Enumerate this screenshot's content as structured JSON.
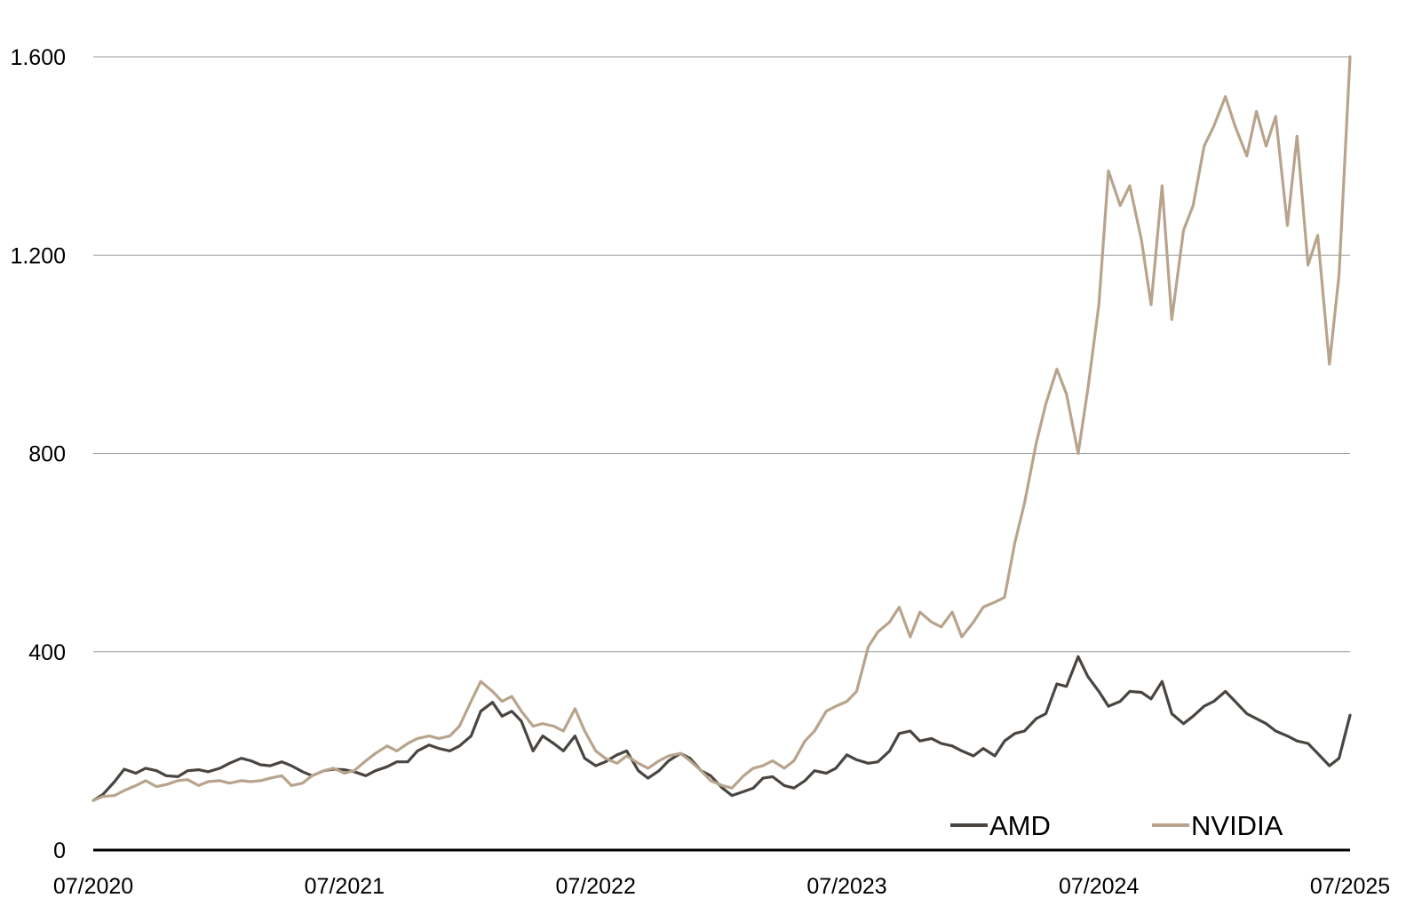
{
  "chart_data": {
    "type": "line",
    "title": "",
    "xlabel": "",
    "ylabel": "",
    "ylim": [
      0,
      1600
    ],
    "xlim": [
      "2020-07",
      "2025-07"
    ],
    "grid": true,
    "legend_position": "bottom-right",
    "y_ticks": [
      0,
      400,
      800,
      1200,
      1600
    ],
    "y_tick_labels": [
      "0",
      "400",
      "800",
      "1.200",
      "1.600"
    ],
    "x_ticks": [
      "2020-07",
      "2021-07",
      "2022-07",
      "2023-07",
      "2024-07",
      "2025-07"
    ],
    "x_tick_labels": [
      "07/2020",
      "07/2021",
      "07/2022",
      "07/2023",
      "07/2024",
      "07/2025"
    ],
    "series": [
      {
        "name": "AMD",
        "color": "#4a4540",
        "points": [
          [
            "2020-07-01",
            100
          ],
          [
            "2020-07-15",
            112
          ],
          [
            "2020-08-01",
            138
          ],
          [
            "2020-08-15",
            163
          ],
          [
            "2020-09-01",
            155
          ],
          [
            "2020-09-15",
            165
          ],
          [
            "2020-10-01",
            160
          ],
          [
            "2020-10-15",
            150
          ],
          [
            "2020-11-01",
            148
          ],
          [
            "2020-11-15",
            160
          ],
          [
            "2020-12-01",
            162
          ],
          [
            "2020-12-15",
            158
          ],
          [
            "2021-01-01",
            165
          ],
          [
            "2021-01-15",
            175
          ],
          [
            "2021-02-01",
            185
          ],
          [
            "2021-02-15",
            180
          ],
          [
            "2021-03-01",
            172
          ],
          [
            "2021-03-15",
            170
          ],
          [
            "2021-04-01",
            178
          ],
          [
            "2021-04-15",
            170
          ],
          [
            "2021-05-01",
            158
          ],
          [
            "2021-05-15",
            150
          ],
          [
            "2021-06-01",
            160
          ],
          [
            "2021-06-15",
            163
          ],
          [
            "2021-07-01",
            162
          ],
          [
            "2021-07-15",
            158
          ],
          [
            "2021-08-01",
            150
          ],
          [
            "2021-08-15",
            160
          ],
          [
            "2021-09-01",
            168
          ],
          [
            "2021-09-15",
            178
          ],
          [
            "2021-10-01",
            178
          ],
          [
            "2021-10-15",
            200
          ],
          [
            "2021-11-01",
            212
          ],
          [
            "2021-11-15",
            205
          ],
          [
            "2021-12-01",
            200
          ],
          [
            "2021-12-15",
            210
          ],
          [
            "2022-01-01",
            230
          ],
          [
            "2022-01-15",
            280
          ],
          [
            "2022-02-01",
            298
          ],
          [
            "2022-02-15",
            270
          ],
          [
            "2022-03-01",
            280
          ],
          [
            "2022-03-15",
            260
          ],
          [
            "2022-04-01",
            200
          ],
          [
            "2022-04-15",
            230
          ],
          [
            "2022-05-01",
            215
          ],
          [
            "2022-05-15",
            200
          ],
          [
            "2022-06-01",
            230
          ],
          [
            "2022-06-15",
            185
          ],
          [
            "2022-07-01",
            170
          ],
          [
            "2022-07-15",
            178
          ],
          [
            "2022-08-01",
            192
          ],
          [
            "2022-08-15",
            200
          ],
          [
            "2022-09-01",
            160
          ],
          [
            "2022-09-15",
            145
          ],
          [
            "2022-10-01",
            160
          ],
          [
            "2022-10-15",
            180
          ],
          [
            "2022-11-01",
            195
          ],
          [
            "2022-11-15",
            185
          ],
          [
            "2022-12-01",
            160
          ],
          [
            "2022-12-15",
            150
          ],
          [
            "2023-01-01",
            125
          ],
          [
            "2023-01-15",
            110
          ],
          [
            "2023-02-01",
            118
          ],
          [
            "2023-02-15",
            125
          ],
          [
            "2023-03-01",
            145
          ],
          [
            "2023-03-15",
            148
          ],
          [
            "2023-04-01",
            130
          ],
          [
            "2023-04-15",
            125
          ],
          [
            "2023-05-01",
            140
          ],
          [
            "2023-05-15",
            160
          ],
          [
            "2023-06-01",
            155
          ],
          [
            "2023-06-15",
            165
          ],
          [
            "2023-07-01",
            192
          ],
          [
            "2023-07-15",
            182
          ],
          [
            "2023-08-01",
            175
          ],
          [
            "2023-08-15",
            178
          ],
          [
            "2023-09-01",
            200
          ],
          [
            "2023-09-15",
            235
          ],
          [
            "2023-10-01",
            240
          ],
          [
            "2023-10-15",
            220
          ],
          [
            "2023-11-01",
            225
          ],
          [
            "2023-11-15",
            215
          ],
          [
            "2023-12-01",
            210
          ],
          [
            "2023-12-15",
            200
          ],
          [
            "2024-01-01",
            190
          ],
          [
            "2024-01-15",
            205
          ],
          [
            "2024-02-01",
            190
          ],
          [
            "2024-02-15",
            220
          ],
          [
            "2024-03-01",
            235
          ],
          [
            "2024-03-15",
            240
          ],
          [
            "2024-04-01",
            265
          ],
          [
            "2024-04-15",
            275
          ],
          [
            "2024-05-01",
            335
          ],
          [
            "2024-05-15",
            330
          ],
          [
            "2024-06-01",
            390
          ],
          [
            "2024-06-15",
            350
          ],
          [
            "2024-07-01",
            320
          ],
          [
            "2024-07-15",
            290
          ],
          [
            "2024-08-01",
            300
          ],
          [
            "2024-08-15",
            320
          ],
          [
            "2024-09-01",
            318
          ],
          [
            "2024-09-15",
            305
          ],
          [
            "2024-10-01",
            340
          ],
          [
            "2024-10-15",
            275
          ],
          [
            "2024-11-01",
            255
          ],
          [
            "2024-11-15",
            270
          ],
          [
            "2024-12-01",
            290
          ],
          [
            "2024-12-15",
            300
          ],
          [
            "2025-01-01",
            320
          ],
          [
            "2025-01-15",
            300
          ],
          [
            "2025-02-01",
            275
          ],
          [
            "2025-02-15",
            265
          ],
          [
            "2025-03-01",
            255
          ],
          [
            "2025-03-15",
            240
          ],
          [
            "2025-04-01",
            230
          ],
          [
            "2025-04-15",
            220
          ],
          [
            "2025-05-01",
            215
          ],
          [
            "2025-05-15",
            195
          ],
          [
            "2025-06-01",
            170
          ],
          [
            "2025-06-15",
            185
          ],
          [
            "2025-07-01",
            272
          ]
        ]
      },
      {
        "name": "NVIDIA",
        "color": "#b8a48c",
        "points": [
          [
            "2020-07-01",
            100
          ],
          [
            "2020-07-15",
            108
          ],
          [
            "2020-08-01",
            110
          ],
          [
            "2020-08-15",
            120
          ],
          [
            "2020-09-01",
            130
          ],
          [
            "2020-09-15",
            140
          ],
          [
            "2020-10-01",
            128
          ],
          [
            "2020-10-15",
            132
          ],
          [
            "2020-11-01",
            140
          ],
          [
            "2020-11-15",
            142
          ],
          [
            "2020-12-01",
            130
          ],
          [
            "2020-12-15",
            138
          ],
          [
            "2021-01-01",
            140
          ],
          [
            "2021-01-15",
            135
          ],
          [
            "2021-02-01",
            140
          ],
          [
            "2021-02-15",
            138
          ],
          [
            "2021-03-01",
            140
          ],
          [
            "2021-03-15",
            145
          ],
          [
            "2021-04-01",
            150
          ],
          [
            "2021-04-15",
            130
          ],
          [
            "2021-05-01",
            135
          ],
          [
            "2021-05-15",
            150
          ],
          [
            "2021-06-01",
            160
          ],
          [
            "2021-06-15",
            165
          ],
          [
            "2021-07-01",
            155
          ],
          [
            "2021-07-15",
            160
          ],
          [
            "2021-08-01",
            180
          ],
          [
            "2021-08-15",
            195
          ],
          [
            "2021-09-01",
            210
          ],
          [
            "2021-09-15",
            200
          ],
          [
            "2021-10-01",
            215
          ],
          [
            "2021-10-15",
            225
          ],
          [
            "2021-11-01",
            230
          ],
          [
            "2021-11-15",
            225
          ],
          [
            "2021-12-01",
            230
          ],
          [
            "2021-12-15",
            250
          ],
          [
            "2022-01-01",
            300
          ],
          [
            "2022-01-15",
            340
          ],
          [
            "2022-02-01",
            320
          ],
          [
            "2022-02-15",
            300
          ],
          [
            "2022-03-01",
            310
          ],
          [
            "2022-03-15",
            280
          ],
          [
            "2022-04-01",
            250
          ],
          [
            "2022-04-15",
            255
          ],
          [
            "2022-05-01",
            250
          ],
          [
            "2022-05-15",
            240
          ],
          [
            "2022-06-01",
            285
          ],
          [
            "2022-06-15",
            240
          ],
          [
            "2022-07-01",
            200
          ],
          [
            "2022-07-15",
            185
          ],
          [
            "2022-08-01",
            175
          ],
          [
            "2022-08-15",
            190
          ],
          [
            "2022-09-01",
            175
          ],
          [
            "2022-09-15",
            165
          ],
          [
            "2022-10-01",
            180
          ],
          [
            "2022-10-15",
            190
          ],
          [
            "2022-11-01",
            195
          ],
          [
            "2022-11-15",
            180
          ],
          [
            "2022-12-01",
            160
          ],
          [
            "2022-12-15",
            140
          ],
          [
            "2023-01-01",
            130
          ],
          [
            "2023-01-15",
            125
          ],
          [
            "2023-02-01",
            150
          ],
          [
            "2023-02-15",
            165
          ],
          [
            "2023-03-01",
            170
          ],
          [
            "2023-03-15",
            180
          ],
          [
            "2023-04-01",
            165
          ],
          [
            "2023-04-15",
            180
          ],
          [
            "2023-05-01",
            220
          ],
          [
            "2023-05-15",
            240
          ],
          [
            "2023-06-01",
            280
          ],
          [
            "2023-06-15",
            290
          ],
          [
            "2023-07-01",
            300
          ],
          [
            "2023-07-15",
            320
          ],
          [
            "2023-08-01",
            410
          ],
          [
            "2023-08-15",
            440
          ],
          [
            "2023-09-01",
            460
          ],
          [
            "2023-09-15",
            490
          ],
          [
            "2023-10-01",
            430
          ],
          [
            "2023-10-15",
            480
          ],
          [
            "2023-11-01",
            460
          ],
          [
            "2023-11-15",
            450
          ],
          [
            "2023-12-01",
            480
          ],
          [
            "2023-12-15",
            430
          ],
          [
            "2024-01-01",
            460
          ],
          [
            "2024-01-15",
            490
          ],
          [
            "2024-02-01",
            500
          ],
          [
            "2024-02-15",
            510
          ],
          [
            "2024-03-01",
            620
          ],
          [
            "2024-03-15",
            700
          ],
          [
            "2024-04-01",
            820
          ],
          [
            "2024-04-15",
            900
          ],
          [
            "2024-05-01",
            970
          ],
          [
            "2024-05-15",
            920
          ],
          [
            "2024-06-01",
            800
          ],
          [
            "2024-06-15",
            930
          ],
          [
            "2024-07-01",
            1100
          ],
          [
            "2024-07-15",
            1370
          ],
          [
            "2024-08-01",
            1300
          ],
          [
            "2024-08-15",
            1340
          ],
          [
            "2024-09-01",
            1230
          ],
          [
            "2024-09-15",
            1100
          ],
          [
            "2024-10-01",
            1340
          ],
          [
            "2024-10-15",
            1070
          ],
          [
            "2024-11-01",
            1250
          ],
          [
            "2024-11-15",
            1300
          ],
          [
            "2024-12-01",
            1420
          ],
          [
            "2024-12-15",
            1460
          ],
          [
            "2025-01-01",
            1520
          ],
          [
            "2025-01-15",
            1460
          ],
          [
            "2025-02-01",
            1400
          ],
          [
            "2025-02-15",
            1490
          ],
          [
            "2025-03-01",
            1420
          ],
          [
            "2025-03-15",
            1480
          ],
          [
            "2025-04-01",
            1260
          ],
          [
            "2025-04-15",
            1440
          ],
          [
            "2025-05-01",
            1180
          ],
          [
            "2025-05-15",
            1240
          ],
          [
            "2025-06-01",
            980
          ],
          [
            "2025-06-15",
            1160
          ],
          [
            "2025-07-01",
            1600
          ]
        ]
      }
    ]
  }
}
